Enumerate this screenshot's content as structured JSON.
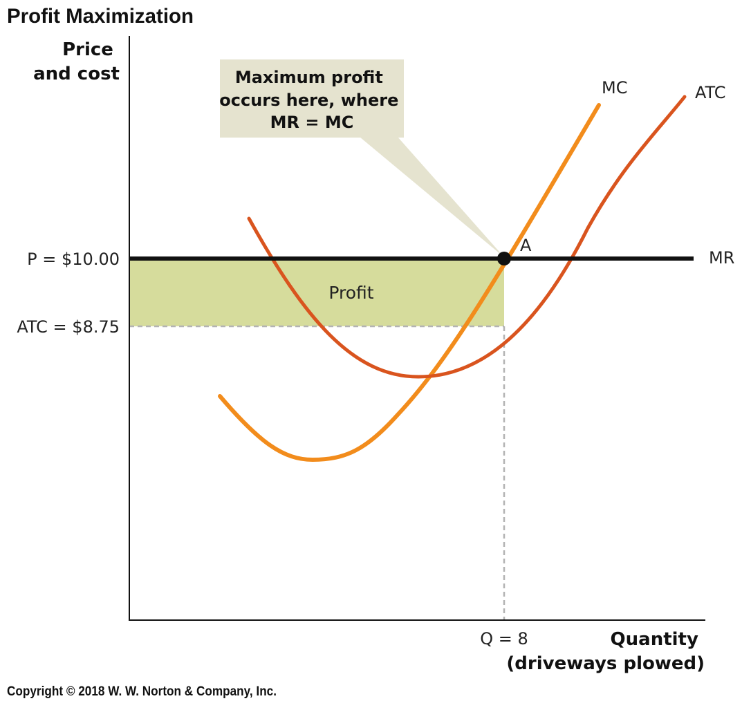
{
  "chart_data": {
    "type": "line",
    "title": "Profit Maximization",
    "ylabel": [
      "Price",
      "and cost"
    ],
    "xlabel": [
      "Quantity",
      "(driveways plowed)"
    ],
    "price": 10.0,
    "atc_at_q": 8.75,
    "quantity": 8,
    "price_label": "P = $10.00",
    "atc_label": "ATC = $8.75",
    "q_label": "Q = 8",
    "profit_label": "Profit",
    "point_label": "A",
    "callout": [
      "Maximum profit",
      "occurs here, where",
      "MR = MC"
    ],
    "series": [
      {
        "name": "MR",
        "color": "#1a1a1a"
      },
      {
        "name": "MC",
        "color": "#f28c1c"
      },
      {
        "name": "ATC",
        "color": "#d9541e"
      }
    ],
    "colors": {
      "profit_area": "#d6dc9c",
      "callout_bg": "#e5e3cf",
      "guide": "#b3b3b3"
    },
    "grid": false
  },
  "copyright": "Copyright © 2018 W. W. Norton & Company, Inc."
}
